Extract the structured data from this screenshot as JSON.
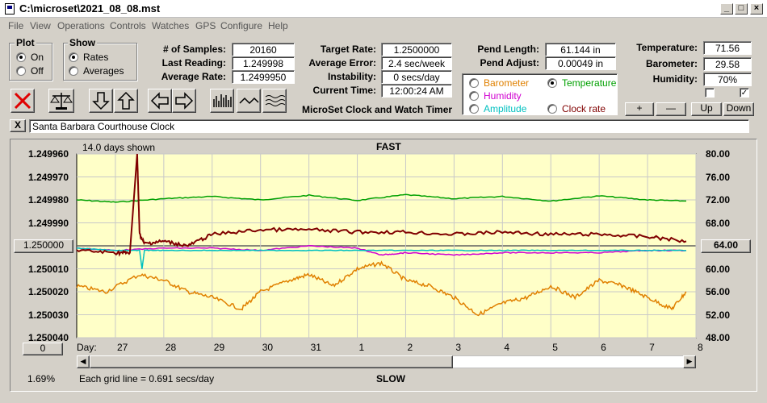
{
  "window": {
    "title": "C:\\microset\\2021_08_08.mst"
  },
  "menu": [
    "File",
    "View",
    "Operations",
    "Controls",
    "Watches",
    "GPS",
    "Configure",
    "Help"
  ],
  "plot_group": {
    "label": "Plot",
    "options": [
      "On",
      "Off"
    ],
    "selected": "On"
  },
  "show_group": {
    "label": "Show",
    "options": [
      "Rates",
      "Averages"
    ],
    "selected": "Rates"
  },
  "stats": {
    "samples_label": "# of Samples:",
    "samples_value": "20160",
    "last_label": "Last Reading:",
    "last_value": "1.249998",
    "avg_label": "Average Rate:",
    "avg_value": "1.2499950"
  },
  "rates": {
    "target_label": "Target Rate:",
    "target_value": "1.2500000",
    "error_label": "Average Error:",
    "error_value": "2.4 sec/week",
    "instab_label": "Instability:",
    "instab_value": "0 secs/day",
    "time_label": "Current Time:",
    "time_value": "12:00:24 AM"
  },
  "product_name": "MicroSet Clock and Watch Timer",
  "pendulum": {
    "length_label": "Pend Length:",
    "length_value": "61.144 in",
    "adjust_label": "Pend Adjust:",
    "adjust_value": "0.00049 in"
  },
  "overlay": {
    "options": [
      "Barometer",
      "Temperature",
      "Humidity",
      "Amplitude",
      "Clock rate"
    ],
    "selected": "Temperature",
    "colors": {
      "Barometer": "#e08000",
      "Temperature": "#00a000",
      "Humidity": "#d000d0",
      "Amplitude": "#00c0c0",
      "Clock rate": "#800000"
    }
  },
  "environment": {
    "temp_label": "Temperature:",
    "temp_value": "71.56",
    "baro_label": "Barometer:",
    "baro_value": "29.58",
    "hum_label": "Humidity:",
    "hum_value": "70%"
  },
  "adjust_buttons": [
    "+",
    "—",
    "Up",
    "Down"
  ],
  "watch_name": "Santa Barbara Courthouse Clock",
  "close_x": "X",
  "chart": {
    "top_label": "FAST",
    "bottom_label": "SLOW",
    "days_shown": "14.0 days shown",
    "grid_note": "Each grid line = 0.691 secs/day",
    "percent": "1.69%",
    "day_label": "Day:",
    "left_button": "1.250000",
    "right_button": "64.00",
    "bottom_button": "0"
  },
  "chart_data": {
    "type": "line",
    "x_label": "Day:",
    "x_ticks": [
      "27",
      "28",
      "29",
      "30",
      "31",
      "1",
      "2",
      "3",
      "4",
      "5",
      "6",
      "7",
      "8"
    ],
    "left_axis": {
      "ticks": [
        "1.249960",
        "1.249970",
        "1.249980",
        "1.249990",
        "1.250000",
        "1.250010",
        "1.250020",
        "1.250030",
        "1.250040"
      ],
      "range": [
        1.24996,
        1.25004
      ],
      "inverted": true
    },
    "right_axis": {
      "ticks": [
        "80.00",
        "76.00",
        "72.00",
        "68.00",
        "64.00",
        "60.00",
        "56.00",
        "52.00",
        "48.00"
      ],
      "range": [
        48,
        80
      ]
    },
    "x_range": [
      26.2,
      39.0
    ],
    "series": [
      {
        "name": "Temperature",
        "color": "#00a000",
        "axis": "right",
        "x": [
          26.2,
          27,
          28,
          29,
          30,
          31,
          32,
          33,
          34,
          35,
          36,
          37,
          38,
          38.8
        ],
        "y": [
          72.0,
          71.6,
          72.2,
          72.6,
          72.0,
          72.8,
          71.9,
          72.9,
          72.2,
          72.6,
          71.8,
          72.7,
          72.0,
          71.8
        ]
      },
      {
        "name": "Clock rate",
        "color": "#800000",
        "axis": "left",
        "x": [
          26.2,
          27,
          27.3,
          27.45,
          27.5,
          27.6,
          28,
          28.5,
          29,
          30,
          31,
          32,
          33,
          34,
          35,
          36,
          37,
          38,
          38.8
        ],
        "y": [
          1.250002,
          1.250003,
          1.250003,
          1.24996,
          1.249995,
          1.249999,
          1.249998,
          1.25,
          1.249995,
          1.249993,
          1.249993,
          1.249994,
          1.249994,
          1.249995,
          1.249994,
          1.249995,
          1.249995,
          1.249996,
          1.249998
        ]
      },
      {
        "name": "Humidity",
        "color": "#d000d0",
        "axis": "left",
        "x": [
          26.2,
          27,
          28,
          29,
          30,
          31,
          32,
          32.5,
          33,
          34,
          35,
          36,
          37,
          38,
          38.8
        ],
        "y": [
          1.250001,
          1.250002,
          1.250001,
          1.250001,
          1.250002,
          1.25,
          1.250001,
          1.250004,
          1.250003,
          1.250004,
          1.250003,
          1.250003,
          1.250003,
          1.250002,
          1.250002
        ]
      },
      {
        "name": "Amplitude",
        "color": "#00c0c0",
        "axis": "left",
        "x": [
          26.2,
          27,
          27.5,
          27.55,
          27.6,
          28,
          29,
          30,
          31,
          32,
          33,
          34,
          35,
          36,
          37,
          38,
          38.8
        ],
        "y": [
          1.250001,
          1.250002,
          1.250002,
          1.25001,
          1.250002,
          1.250002,
          1.250002,
          1.250002,
          1.250002,
          1.250002,
          1.250002,
          1.250002,
          1.250002,
          1.250002,
          1.250002,
          1.250002,
          1.250002
        ]
      },
      {
        "name": "Barometer",
        "color": "#e08000",
        "axis": "right",
        "x": [
          26.2,
          26.8,
          27.5,
          28,
          28.5,
          29,
          29.6,
          30,
          30.6,
          31,
          31.5,
          32,
          32.5,
          33,
          33.5,
          34,
          34.5,
          35,
          35.5,
          36,
          36.5,
          37,
          37.5,
          38,
          38.5,
          38.8
        ],
        "y": [
          57,
          56,
          59,
          58,
          56,
          55,
          53,
          56,
          58,
          59,
          57,
          60,
          61,
          58,
          57,
          55,
          52,
          54,
          55,
          57,
          55,
          58,
          57,
          55,
          53,
          56
        ]
      }
    ]
  }
}
